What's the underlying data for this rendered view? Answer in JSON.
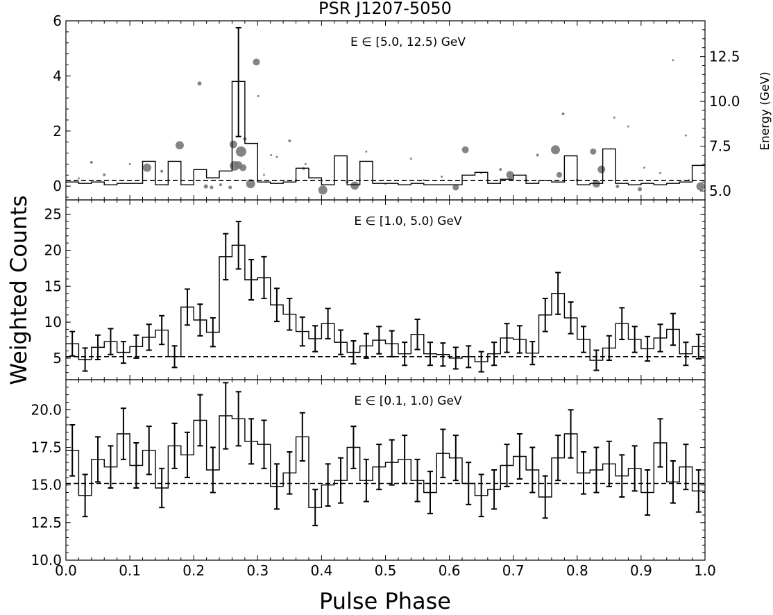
{
  "figure": {
    "title": "PSR J1207-5050",
    "ylabel": "Weighted Counts",
    "xlabel": "Pulse Phase",
    "right_ylabel": "Energy (GeV)"
  },
  "chart_data": [
    {
      "type": "line",
      "style": "step histogram with scatter overlay",
      "annotation": "E ∈ [5.0, 12.5) GeV",
      "xlim": [
        0,
        1
      ],
      "ylim": [
        -0.5,
        6
      ],
      "yticks": [
        0,
        2,
        4,
        6
      ],
      "x": [
        0.01,
        0.03,
        0.05,
        0.07,
        0.09,
        0.11,
        0.13,
        0.15,
        0.17,
        0.19,
        0.21,
        0.23,
        0.25,
        0.27,
        0.29,
        0.31,
        0.33,
        0.35,
        0.37,
        0.39,
        0.41,
        0.43,
        0.45,
        0.47,
        0.49,
        0.51,
        0.53,
        0.55,
        0.57,
        0.59,
        0.61,
        0.63,
        0.65,
        0.67,
        0.69,
        0.71,
        0.73,
        0.75,
        0.77,
        0.79,
        0.81,
        0.83,
        0.85,
        0.87,
        0.89,
        0.91,
        0.93,
        0.95,
        0.97,
        0.99
      ],
      "values": [
        0.15,
        0.1,
        0.15,
        0.05,
        0.1,
        0.1,
        0.9,
        0.05,
        0.9,
        0.05,
        0.6,
        0.3,
        0.55,
        3.8,
        1.55,
        0.15,
        0.1,
        0.15,
        0.65,
        0.3,
        0.05,
        1.1,
        0.05,
        0.9,
        0.1,
        0.1,
        0.05,
        0.1,
        0.05,
        0.05,
        0.05,
        0.4,
        0.5,
        0.1,
        0.25,
        0.4,
        0.1,
        0.2,
        0.15,
        1.1,
        0.05,
        0.1,
        1.35,
        0.1,
        0.05,
        0.1,
        0.05,
        0.1,
        0.15,
        0.75
      ],
      "errorbar": {
        "x": 0.27,
        "y": 3.8,
        "lo": 1.8,
        "hi": 5.75
      },
      "background_level": 0.2,
      "secondary_axis": {
        "label": "Energy (GeV)",
        "ticks": [
          5.0,
          7.5,
          10.0,
          12.5
        ],
        "lim": [
          4.5,
          14.5
        ]
      },
      "scatter_points": [
        {
          "x": 0.127,
          "e": 6.3,
          "s": 12
        },
        {
          "x": 0.178,
          "e": 7.55,
          "s": 12
        },
        {
          "x": 0.209,
          "e": 11.0,
          "s": 6
        },
        {
          "x": 0.219,
          "e": 5.25,
          "s": 6
        },
        {
          "x": 0.228,
          "e": 5.2,
          "s": 5
        },
        {
          "x": 0.242,
          "e": 5.35,
          "s": 4
        },
        {
          "x": 0.257,
          "e": 5.2,
          "s": 5
        },
        {
          "x": 0.262,
          "e": 7.6,
          "s": 11
        },
        {
          "x": 0.264,
          "e": 6.4,
          "s": 14
        },
        {
          "x": 0.27,
          "e": 6.45,
          "s": 11
        },
        {
          "x": 0.274,
          "e": 7.2,
          "s": 15
        },
        {
          "x": 0.277,
          "e": 6.3,
          "s": 10
        },
        {
          "x": 0.28,
          "e": 7.9,
          "s": 5
        },
        {
          "x": 0.289,
          "e": 5.4,
          "s": 13
        },
        {
          "x": 0.298,
          "e": 12.2,
          "s": 10
        },
        {
          "x": 0.301,
          "e": 10.3,
          "s": 3
        },
        {
          "x": 0.321,
          "e": 7.0,
          "s": 3
        },
        {
          "x": 0.35,
          "e": 7.8,
          "s": 4
        },
        {
          "x": 0.372,
          "e": 6.25,
          "s": 4
        },
        {
          "x": 0.375,
          "e": 6.5,
          "s": 3
        },
        {
          "x": 0.402,
          "e": 5.05,
          "s": 13
        },
        {
          "x": 0.452,
          "e": 5.3,
          "s": 12
        },
        {
          "x": 0.47,
          "e": 7.2,
          "s": 3
        },
        {
          "x": 0.588,
          "e": 5.8,
          "s": 3
        },
        {
          "x": 0.61,
          "e": 5.2,
          "s": 9
        },
        {
          "x": 0.625,
          "e": 7.3,
          "s": 10
        },
        {
          "x": 0.68,
          "e": 6.2,
          "s": 4
        },
        {
          "x": 0.695,
          "e": 5.9,
          "s": 11
        },
        {
          "x": 0.738,
          "e": 7.0,
          "s": 4
        },
        {
          "x": 0.766,
          "e": 7.3,
          "s": 13
        },
        {
          "x": 0.772,
          "e": 5.9,
          "s": 8
        },
        {
          "x": 0.778,
          "e": 9.3,
          "s": 4
        },
        {
          "x": 0.825,
          "e": 7.2,
          "s": 9
        },
        {
          "x": 0.83,
          "e": 5.4,
          "s": 11
        },
        {
          "x": 0.838,
          "e": 6.2,
          "s": 11
        },
        {
          "x": 0.858,
          "e": 9.1,
          "s": 3
        },
        {
          "x": 0.863,
          "e": 5.25,
          "s": 5
        },
        {
          "x": 0.898,
          "e": 5.1,
          "s": 6
        },
        {
          "x": 0.993,
          "e": 5.25,
          "s": 12
        },
        {
          "x": 0.97,
          "e": 8.1,
          "s": 3
        },
        {
          "x": 0.95,
          "e": 12.3,
          "s": 3
        },
        {
          "x": 0.93,
          "e": 6.0,
          "s": 3
        },
        {
          "x": 0.88,
          "e": 8.6,
          "s": 3
        },
        {
          "x": 0.36,
          "e": 5.6,
          "s": 3
        },
        {
          "x": 0.44,
          "e": 5.5,
          "s": 4
        },
        {
          "x": 0.5,
          "e": 5.4,
          "s": 3
        },
        {
          "x": 0.54,
          "e": 6.8,
          "s": 3
        },
        {
          "x": 0.72,
          "e": 5.6,
          "s": 3
        },
        {
          "x": 0.8,
          "e": 5.6,
          "s": 4
        },
        {
          "x": 0.15,
          "e": 6.1,
          "s": 4
        },
        {
          "x": 0.1,
          "e": 6.5,
          "s": 3
        },
        {
          "x": 0.06,
          "e": 5.9,
          "s": 4
        },
        {
          "x": 0.04,
          "e": 6.6,
          "s": 4
        },
        {
          "x": 0.02,
          "e": 5.7,
          "s": 3
        },
        {
          "x": 0.31,
          "e": 5.9,
          "s": 3
        },
        {
          "x": 0.33,
          "e": 6.9,
          "s": 3
        },
        {
          "x": 0.56,
          "e": 5.6,
          "s": 3
        },
        {
          "x": 0.65,
          "e": 6.0,
          "s": 3
        },
        {
          "x": 0.905,
          "e": 6.3,
          "s": 3
        },
        {
          "x": 0.975,
          "e": 5.6,
          "s": 3
        }
      ],
      "scatter_color": "#777777"
    },
    {
      "type": "line",
      "style": "step histogram with error bars",
      "annotation": "E ∈ [1.0, 5.0) GeV",
      "xlim": [
        0,
        1
      ],
      "ylim": [
        2,
        27
      ],
      "yticks": [
        5,
        10,
        15,
        20,
        25
      ],
      "x": [
        0.01,
        0.03,
        0.05,
        0.07,
        0.09,
        0.11,
        0.13,
        0.15,
        0.17,
        0.19,
        0.21,
        0.23,
        0.25,
        0.27,
        0.29,
        0.31,
        0.33,
        0.35,
        0.37,
        0.39,
        0.41,
        0.43,
        0.45,
        0.47,
        0.49,
        0.51,
        0.53,
        0.55,
        0.57,
        0.59,
        0.61,
        0.63,
        0.65,
        0.67,
        0.69,
        0.71,
        0.73,
        0.75,
        0.77,
        0.79,
        0.81,
        0.83,
        0.85,
        0.87,
        0.89,
        0.91,
        0.93,
        0.95,
        0.97,
        0.99
      ],
      "values": [
        7.0,
        4.8,
        6.5,
        7.3,
        5.8,
        6.6,
        7.9,
        8.9,
        5.2,
        12.1,
        10.3,
        8.6,
        19.1,
        20.7,
        15.9,
        16.2,
        12.4,
        11.1,
        8.7,
        7.7,
        9.8,
        7.2,
        5.8,
        6.7,
        7.5,
        7.0,
        5.6,
        8.3,
        5.6,
        5.5,
        5.0,
        5.2,
        4.5,
        5.6,
        7.8,
        7.6,
        5.7,
        11.0,
        14.0,
        10.6,
        7.6,
        4.7,
        6.4,
        9.8,
        7.6,
        6.3,
        7.8,
        9.0,
        5.6,
        6.6
      ],
      "errors": [
        1.7,
        1.6,
        1.7,
        1.8,
        1.5,
        1.6,
        1.8,
        2.0,
        1.5,
        2.5,
        2.2,
        2.0,
        3.2,
        3.3,
        2.8,
        2.9,
        2.3,
        2.2,
        2.0,
        1.8,
        2.1,
        1.7,
        1.6,
        1.7,
        1.9,
        1.8,
        1.6,
        2.1,
        1.6,
        1.6,
        1.5,
        1.5,
        1.4,
        1.6,
        2.0,
        1.9,
        1.6,
        2.3,
        2.9,
        2.2,
        1.8,
        1.4,
        1.7,
        2.2,
        1.8,
        1.7,
        1.9,
        2.2,
        1.6,
        1.7
      ],
      "background_level": 5.2
    },
    {
      "type": "line",
      "style": "step histogram with error bars",
      "annotation": "E ∈ [0.1, 1.0) GeV",
      "xlim": [
        0,
        1
      ],
      "ylim": [
        10,
        22
      ],
      "yticks": [
        10.0,
        12.5,
        15.0,
        17.5,
        20.0
      ],
      "x": [
        0.01,
        0.03,
        0.05,
        0.07,
        0.09,
        0.11,
        0.13,
        0.15,
        0.17,
        0.19,
        0.21,
        0.23,
        0.25,
        0.27,
        0.29,
        0.31,
        0.33,
        0.35,
        0.37,
        0.39,
        0.41,
        0.43,
        0.45,
        0.47,
        0.49,
        0.51,
        0.53,
        0.55,
        0.57,
        0.59,
        0.61,
        0.63,
        0.65,
        0.67,
        0.69,
        0.71,
        0.73,
        0.75,
        0.77,
        0.79,
        0.81,
        0.83,
        0.85,
        0.87,
        0.89,
        0.91,
        0.93,
        0.95,
        0.97,
        0.99
      ],
      "values": [
        17.3,
        14.3,
        16.7,
        16.2,
        18.4,
        16.3,
        17.3,
        14.8,
        17.6,
        17.0,
        19.3,
        16.0,
        19.6,
        19.4,
        17.9,
        17.7,
        14.9,
        15.8,
        18.2,
        13.5,
        15.0,
        15.3,
        17.5,
        15.3,
        16.2,
        16.5,
        16.7,
        15.3,
        14.5,
        17.1,
        16.8,
        15.1,
        14.3,
        14.7,
        16.3,
        16.9,
        16.0,
        14.2,
        16.8,
        18.4,
        15.8,
        16.0,
        16.4,
        15.6,
        16.1,
        14.5,
        17.8,
        15.2,
        16.2,
        14.6
      ],
      "errors": [
        1.7,
        1.4,
        1.5,
        1.4,
        1.7,
        1.5,
        1.6,
        1.3,
        1.5,
        1.5,
        1.7,
        1.5,
        2.2,
        1.8,
        1.5,
        1.6,
        1.5,
        1.4,
        1.6,
        1.2,
        1.4,
        1.5,
        1.4,
        1.4,
        1.5,
        1.5,
        1.6,
        1.4,
        1.4,
        1.6,
        1.5,
        1.4,
        1.4,
        1.3,
        1.4,
        1.5,
        1.5,
        1.4,
        1.5,
        1.6,
        1.4,
        1.5,
        1.5,
        1.4,
        1.5,
        1.5,
        1.6,
        1.4,
        1.5,
        1.4
      ],
      "background_level": 15.1,
      "xticks": [
        0.0,
        0.1,
        0.2,
        0.3,
        0.4,
        0.5,
        0.6,
        0.7,
        0.8,
        0.9,
        1.0
      ]
    }
  ]
}
